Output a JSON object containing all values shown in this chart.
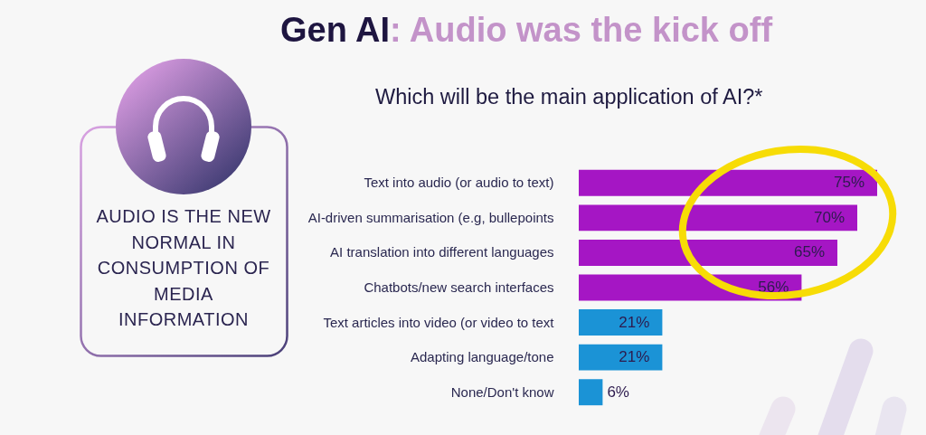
{
  "chart_data": {
    "type": "bar",
    "orientation": "horizontal",
    "title": "Gen AI: Audio was the kick off",
    "subtitle": "Which will be the main application of AI?*",
    "categories": [
      "Text into audio (or audio to text)",
      "AI-driven summarisation (e.g, bullepoints",
      "AI translation into different languages",
      "Chatbots/new search interfaces",
      "Text articles into video (or video to text",
      "Adapting language/tone",
      "None/Don't know"
    ],
    "values": [
      75,
      70,
      65,
      56,
      21,
      21,
      6
    ],
    "colors": [
      "#a516c4",
      "#a516c4",
      "#a516c4",
      "#a516c4",
      "#1b93d6",
      "#1b93d6",
      "#1b93d6"
    ],
    "value_labels": [
      "75%",
      "70%",
      "65%",
      "56%",
      "21%",
      "21%",
      "6%"
    ],
    "tick_labels": "y",
    "annotations": [
      "AUDIO IS THE NEW\nNORMAL IN\nCONSUMPTION OF\nMEDIA\nINFORMATION"
    ]
  }
}
